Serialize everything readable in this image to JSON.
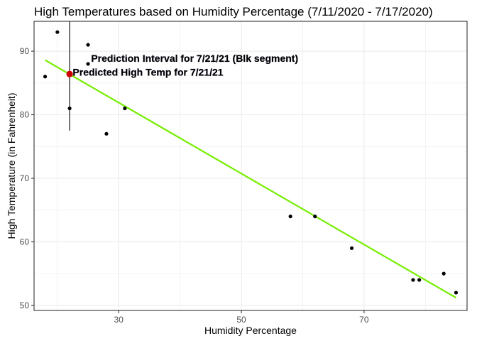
{
  "chart_data": {
    "type": "scatter",
    "title": "High Temperatures based on Humidity Percentage (7/11/2020 - 7/17/2020)",
    "xlabel": "Humidity Percentage",
    "ylabel": "High Temperature (in Fahrenheit)",
    "xlim": [
      16.2,
      86.8
    ],
    "ylim": [
      49.2,
      94.7
    ],
    "x_ticks": [
      30,
      50,
      70
    ],
    "y_ticks": [
      50,
      60,
      70,
      80,
      90
    ],
    "grid": true,
    "background": "#ffffff",
    "grid_color": "#ebebeb",
    "panel_border_color": "#333333",
    "series": [
      {
        "type": "scatter",
        "color": "#000000",
        "points": [
          {
            "x": 18,
            "y": 86
          },
          {
            "x": 20,
            "y": 93
          },
          {
            "x": 22,
            "y": 81
          },
          {
            "x": 25,
            "y": 91
          },
          {
            "x": 25,
            "y": 88
          },
          {
            "x": 28,
            "y": 77
          },
          {
            "x": 31,
            "y": 81
          },
          {
            "x": 58,
            "y": 64
          },
          {
            "x": 62,
            "y": 64
          },
          {
            "x": 68,
            "y": 59
          },
          {
            "x": 78,
            "y": 54
          },
          {
            "x": 79,
            "y": 54
          },
          {
            "x": 83,
            "y": 55
          },
          {
            "x": 85,
            "y": 52
          }
        ]
      },
      {
        "type": "line",
        "color": "#76ee00",
        "from": {
          "x": 18,
          "y": 88.6
        },
        "to": {
          "x": 85,
          "y": 51.2
        }
      }
    ],
    "prediction": {
      "x": 22,
      "y": 86.4,
      "color": "#cc0000",
      "interval": [
        77.5,
        94.7
      ],
      "interval_color": "#000000"
    },
    "annotations": [
      {
        "text": "Prediction Interval for 7/21/21 (Blk segment)",
        "x": 25.5,
        "y": 88.9
      },
      {
        "text": "Predicted High Temp for 7/21/21",
        "x": 22.5,
        "y": 86.7
      }
    ]
  }
}
